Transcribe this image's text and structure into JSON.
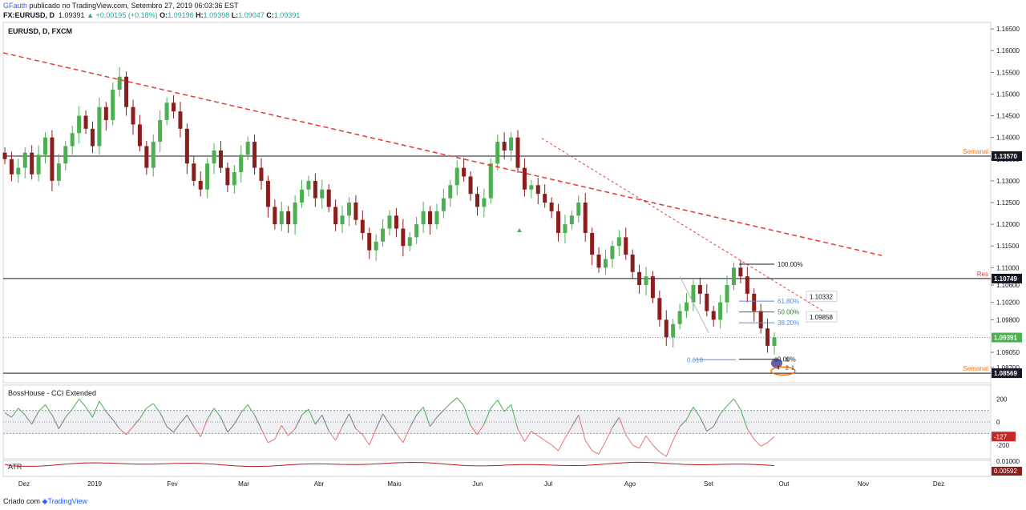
{
  "header": {
    "author": "GFauth",
    "published": "publicado no TradingView.com, Setembro 27, 2019 06:03:36 EST",
    "symbol": "FX:EURUSD, D",
    "last": "1.09391",
    "change": "+0.00195 (+0.18%)",
    "open_label": "O:",
    "open": "1.09196",
    "high_label": "H:",
    "high": "1.09398",
    "low_label": "L:",
    "low": "1.09047",
    "close_label": "C:",
    "close": "1.09391"
  },
  "footer": {
    "created": "Criado com",
    "brand": "TradingView"
  },
  "colors": {
    "up": "#4caf50",
    "down": "#8b1d1d",
    "trend": "#e53935",
    "blue": "#2962ff",
    "fib_green": "#2e7d32",
    "fib_blue": "#5c8bd6",
    "orange": "#ff6d00",
    "cci": "#787b86",
    "cci_neg": "#e57373"
  },
  "chart_data": [
    {
      "type": "candlestick",
      "title": "EURUSD, D, FXCM",
      "ylim": [
        1.0835,
        1.1665
      ],
      "y_ticks": [
        "1.16500",
        "1.16000",
        "1.15500",
        "1.15000",
        "1.14500",
        "1.14000",
        "1.13500",
        "1.13000",
        "1.12500",
        "1.12000",
        "1.11500",
        "1.11000",
        "1.10600",
        "1.10200",
        "1.09800",
        "1.09050",
        "1.08700"
      ],
      "x_ticks": [
        "Dez",
        "2019",
        "Fev",
        "Mar",
        "Abr",
        "Maio",
        "Jun",
        "Jul",
        "Ago",
        "Set",
        "Out",
        "Nov",
        "Dez"
      ],
      "price_labels": [
        {
          "label": "Semanal",
          "value": "1.13570"
        },
        {
          "label": "Res",
          "value": "1.10749"
        },
        {
          "label": "",
          "value": "1.09391"
        },
        {
          "label": "Semanal",
          "value": "1.08569"
        }
      ],
      "fibonacci": [
        {
          "level": "100.00%",
          "price": 1.1108
        },
        {
          "level": "61.80%",
          "price": 1.1023
        },
        {
          "level": "50.00%",
          "price": 1.0998
        },
        {
          "level": "38.20%",
          "price": 1.0973
        },
        {
          "level": "0.00%",
          "price": 1.0889
        }
      ],
      "annotations": [
        "1.10332",
        "1.09858",
        "0.618",
        "6",
        "3",
        "4",
        "2",
        "1"
      ],
      "closes": [
        1.135,
        1.1315,
        1.133,
        1.1365,
        1.1315,
        1.136,
        1.14,
        1.13,
        1.134,
        1.138,
        1.141,
        1.145,
        1.142,
        1.138,
        1.147,
        1.144,
        1.151,
        1.154,
        1.147,
        1.143,
        1.138,
        1.133,
        1.139,
        1.144,
        1.148,
        1.146,
        1.142,
        1.134,
        1.13,
        1.128,
        1.134,
        1.137,
        1.133,
        1.129,
        1.132,
        1.136,
        1.139,
        1.133,
        1.13,
        1.124,
        1.12,
        1.123,
        1.12,
        1.125,
        1.128,
        1.13,
        1.126,
        1.128,
        1.124,
        1.12,
        1.122,
        1.125,
        1.121,
        1.118,
        1.114,
        1.116,
        1.119,
        1.122,
        1.119,
        1.115,
        1.117,
        1.12,
        1.123,
        1.12,
        1.123,
        1.126,
        1.129,
        1.133,
        1.131,
        1.127,
        1.124,
        1.126,
        1.134,
        1.139,
        1.137,
        1.14,
        1.133,
        1.128,
        1.129,
        1.127,
        1.125,
        1.123,
        1.118,
        1.12,
        1.122,
        1.125,
        1.118,
        1.113,
        1.11,
        1.112,
        1.115,
        1.117,
        1.113,
        1.109,
        1.106,
        1.108,
        1.103,
        1.098,
        1.094,
        1.097,
        1.1,
        1.102,
        1.106,
        1.104,
        1.1,
        1.098,
        1.102,
        1.106,
        1.11,
        1.108,
        1.104,
        1.1,
        1.096,
        1.092,
        1.0939
      ],
      "cci": {
        "title": "BossHouse - CCI Extended",
        "ylim": [
          -320,
          320
        ],
        "y_ticks": [
          "200",
          "0",
          "-200"
        ],
        "last_value": "-127",
        "values": [
          80,
          40,
          120,
          60,
          -20,
          90,
          150,
          60,
          -60,
          40,
          110,
          200,
          130,
          40,
          180,
          90,
          20,
          -60,
          -110,
          -40,
          30,
          120,
          160,
          80,
          -40,
          -90,
          -10,
          60,
          -40,
          -130,
          20,
          120,
          40,
          -90,
          -20,
          80,
          150,
          60,
          -60,
          -180,
          -150,
          -30,
          -120,
          -60,
          60,
          110,
          -20,
          60,
          -80,
          -160,
          -40,
          70,
          -60,
          -110,
          -200,
          -60,
          70,
          -20,
          -100,
          -180,
          -50,
          60,
          130,
          -40,
          40,
          100,
          160,
          210,
          140,
          -30,
          -110,
          -20,
          120,
          190,
          90,
          150,
          -60,
          -170,
          -80,
          -120,
          -160,
          -200,
          -250,
          -140,
          -40,
          60,
          -160,
          -250,
          -280,
          -170,
          -50,
          40,
          -110,
          -200,
          -230,
          -120,
          -200,
          -260,
          -300,
          -160,
          -40,
          20,
          130,
          40,
          -80,
          -40,
          70,
          140,
          200,
          110,
          -60,
          -150,
          -210,
          -180,
          -127
        ]
      },
      "atr": {
        "title": "ATR",
        "y_ticks": [
          "0.01000"
        ],
        "last_value": "0.00592"
      }
    }
  ]
}
